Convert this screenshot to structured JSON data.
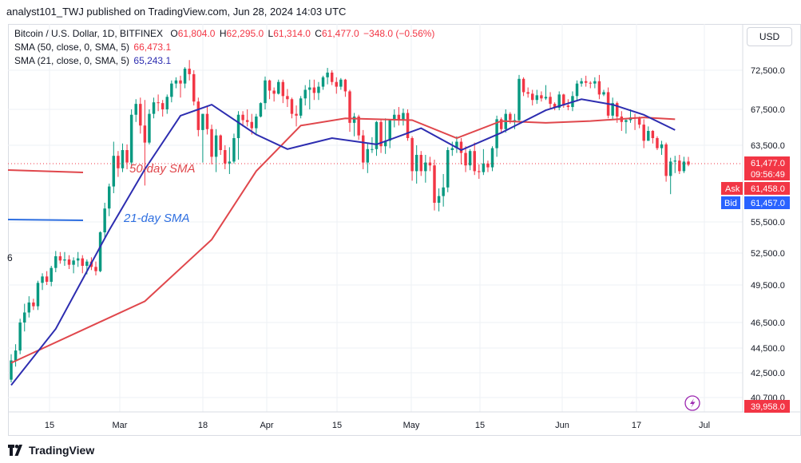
{
  "header": {
    "publisher_line": "analyst101_TWJ published on TradingView.com, Jun 28, 2024 14:03 UTC"
  },
  "legend": {
    "symbol": "Bitcoin / U.S. Dollar, 1D, BITFINEX",
    "open_label": "O",
    "open": "61,804.0",
    "high_label": "H",
    "high": "62,295.0",
    "low_label": "L",
    "low": "61,314.0",
    "close_label": "C",
    "close": "61,477.0",
    "change": "−348.0 (−0.56%)",
    "sma50_label": "SMA (50, close, 0, SMA, 5)",
    "sma50_value": "66,473.1",
    "sma21_label": "SMA (21, close, 0, SMA, 5)",
    "sma21_value": "65,243.1"
  },
  "currency_button": "USD",
  "footer": {
    "brand": "TradingView"
  },
  "colors": {
    "up": "#089981",
    "down": "#f23645",
    "sma50": "#e0474c",
    "sma21": "#2d2db0",
    "grid": "#eef0f4"
  },
  "chart_data": {
    "type": "candlestick",
    "title": "Bitcoin / U.S. Dollar, 1D, BITFINEX",
    "y_ticks": [
      "72,500.0",
      "67,500.0",
      "63,500.0",
      "55,500.0",
      "52,500.0",
      "49,500.0",
      "46,500.0",
      "44,500.0",
      "42,500.0",
      "40,700.0"
    ],
    "y_tick_values": [
      72500,
      67500,
      63500,
      55500,
      52500,
      49500,
      46500,
      44500,
      42500,
      40700
    ],
    "x_ticks": [
      "15",
      "Mar",
      "18",
      "Apr",
      "15",
      "May",
      "15",
      "Jun",
      "17",
      "Jul"
    ],
    "price_labels": {
      "last": "61,477.0",
      "countdown": "09:56:49",
      "ask_label": "Ask",
      "ask": "61,458.0",
      "bid_label": "Bid",
      "bid": "61,457.0",
      "bottom": "39,958.0"
    },
    "annotations": [
      "50-day SMA",
      "21-day SMA"
    ],
    "left_edge_char": "6",
    "candles": [
      [
        42000,
        44000,
        41800,
        43500
      ],
      [
        43500,
        44800,
        43000,
        44300
      ],
      [
        44300,
        46800,
        44000,
        46500
      ],
      [
        46500,
        48000,
        45800,
        47300
      ],
      [
        47300,
        48600,
        46900,
        48100
      ],
      [
        48100,
        48400,
        47500,
        47800
      ],
      [
        47800,
        49900,
        47500,
        49700
      ],
      [
        49700,
        50600,
        49100,
        50300
      ],
      [
        50300,
        50800,
        49500,
        49800
      ],
      [
        49800,
        51300,
        49400,
        51100
      ],
      [
        51100,
        52700,
        50700,
        52200
      ],
      [
        52200,
        52600,
        51500,
        51800
      ],
      [
        51800,
        52600,
        51300,
        51900
      ],
      [
        51900,
        52300,
        51000,
        51400
      ],
      [
        51400,
        52100,
        50600,
        51800
      ],
      [
        51800,
        52600,
        51200,
        52000
      ],
      [
        52000,
        52300,
        50600,
        51300
      ],
      [
        51300,
        51900,
        50500,
        51700
      ],
      [
        51700,
        52100,
        50900,
        51200
      ],
      [
        51200,
        51700,
        50400,
        50800
      ],
      [
        50800,
        54600,
        50700,
        54500
      ],
      [
        54500,
        57500,
        53900,
        56900
      ],
      [
        56900,
        59500,
        56100,
        59200
      ],
      [
        59200,
        63900,
        58500,
        62400
      ],
      [
        62400,
        62900,
        60200,
        61100
      ],
      [
        61100,
        63700,
        60700,
        63000
      ],
      [
        63000,
        63600,
        61000,
        61700
      ],
      [
        61700,
        67500,
        61200,
        66900
      ],
      [
        66900,
        68800,
        66100,
        68200
      ],
      [
        68200,
        69000,
        64800,
        65700
      ],
      [
        65700,
        68700,
        59300,
        63800
      ],
      [
        63800,
        67500,
        63600,
        67000
      ],
      [
        67000,
        69000,
        66500,
        68400
      ],
      [
        68400,
        69400,
        67300,
        68300
      ],
      [
        68300,
        68700,
        66700,
        67500
      ],
      [
        67500,
        69400,
        67000,
        69100
      ],
      [
        69100,
        71200,
        68400,
        70800
      ],
      [
        70800,
        71600,
        70200,
        71200
      ],
      [
        71200,
        71800,
        69000,
        70800
      ],
      [
        70800,
        72900,
        70200,
        72700
      ],
      [
        72700,
        73800,
        71200,
        72000
      ],
      [
        72000,
        72500,
        68000,
        68500
      ],
      [
        68500,
        69000,
        64500,
        65200
      ],
      [
        65200,
        67000,
        61700,
        67000
      ],
      [
        67000,
        68000,
        64700,
        65300
      ],
      [
        65300,
        65800,
        61500,
        62300
      ],
      [
        62300,
        65300,
        60700,
        64600
      ],
      [
        64600,
        64700,
        62500,
        63000
      ],
      [
        63000,
        63500,
        61000,
        61600
      ],
      [
        61600,
        63300,
        60500,
        61800
      ],
      [
        61800,
        64800,
        61600,
        64300
      ],
      [
        64300,
        67300,
        62000,
        66900
      ],
      [
        66900,
        67300,
        65600,
        66300
      ],
      [
        66300,
        67500,
        65600,
        66100
      ],
      [
        66100,
        67000,
        64700,
        65400
      ],
      [
        65400,
        67000,
        64800,
        66700
      ],
      [
        66700,
        68400,
        66600,
        68300
      ],
      [
        68300,
        71700,
        67500,
        71200
      ],
      [
        71200,
        71300,
        68800,
        69900
      ],
      [
        69900,
        70300,
        68500,
        69500
      ],
      [
        69500,
        71300,
        69400,
        71000
      ],
      [
        71000,
        71300,
        68300,
        69200
      ],
      [
        69200,
        70100,
        67800,
        68800
      ],
      [
        68800,
        69000,
        66500,
        67000
      ],
      [
        67000,
        68000,
        65600,
        66800
      ],
      [
        66800,
        69200,
        66500,
        68900
      ],
      [
        68900,
        70600,
        68000,
        70000
      ],
      [
        70000,
        71300,
        67500,
        70300
      ],
      [
        70300,
        71300,
        68700,
        69600
      ],
      [
        69600,
        71000,
        68700,
        70400
      ],
      [
        70400,
        71800,
        70000,
        71600
      ],
      [
        71600,
        72800,
        70700,
        72200
      ],
      [
        72200,
        72500,
        70600,
        71000
      ],
      [
        71000,
        71600,
        69500,
        70400
      ],
      [
        70400,
        71500,
        70000,
        71300
      ],
      [
        71300,
        71400,
        69100,
        69800
      ],
      [
        69800,
        70000,
        65000,
        66000
      ],
      [
        66000,
        67100,
        64500,
        66700
      ],
      [
        66700,
        66900,
        64100,
        64600
      ],
      [
        64600,
        65200,
        61000,
        61700
      ],
      [
        61700,
        63700,
        60600,
        63100
      ],
      [
        63100,
        64400,
        62700,
        63100
      ],
      [
        63100,
        66200,
        62400,
        66100
      ],
      [
        66100,
        66300,
        62700,
        63400
      ],
      [
        63400,
        66500,
        62600,
        64000
      ],
      [
        64000,
        66400,
        63200,
        66300
      ],
      [
        66300,
        67500,
        65500,
        66900
      ],
      [
        66900,
        67800,
        65700,
        66300
      ],
      [
        66300,
        67600,
        65700,
        67100
      ],
      [
        67100,
        67500,
        64000,
        64300
      ],
      [
        64300,
        64500,
        59800,
        60800
      ],
      [
        60800,
        63500,
        59500,
        62500
      ],
      [
        62500,
        62900,
        60300,
        60800
      ],
      [
        60800,
        62500,
        59600,
        61700
      ],
      [
        61700,
        62300,
        60800,
        61400
      ],
      [
        61400,
        62000,
        56700,
        57500
      ],
      [
        57500,
        59000,
        56600,
        58200
      ],
      [
        58200,
        60500,
        57100,
        59100
      ],
      [
        59100,
        63300,
        58600,
        63000
      ],
      [
        63000,
        63900,
        62400,
        63200
      ],
      [
        63200,
        64500,
        62700,
        63900
      ],
      [
        63900,
        64300,
        61500,
        62700
      ],
      [
        62700,
        63400,
        60700,
        61400
      ],
      [
        61400,
        63100,
        60900,
        62900
      ],
      [
        62900,
        63800,
        60400,
        60800
      ],
      [
        60800,
        61500,
        60000,
        60700
      ],
      [
        60700,
        63100,
        60400,
        61600
      ],
      [
        61600,
        61900,
        60700,
        61200
      ],
      [
        61200,
        63400,
        60800,
        63200
      ],
      [
        63200,
        66800,
        62300,
        66400
      ],
      [
        66400,
        66600,
        64900,
        65300
      ],
      [
        65300,
        67500,
        64900,
        67000
      ],
      [
        67000,
        67200,
        65900,
        66300
      ],
      [
        66300,
        67000,
        65300,
        66300
      ],
      [
        66300,
        71900,
        66100,
        71400
      ],
      [
        71400,
        71600,
        69200,
        69700
      ],
      [
        69700,
        70300,
        69000,
        69500
      ],
      [
        69500,
        70000,
        68000,
        68700
      ],
      [
        68700,
        70000,
        68200,
        69300
      ],
      [
        69300,
        69800,
        68500,
        68900
      ],
      [
        68900,
        70600,
        68700,
        69100
      ],
      [
        69100,
        69700,
        67600,
        68200
      ],
      [
        68200,
        68400,
        67400,
        67700
      ],
      [
        67700,
        69800,
        67400,
        69400
      ],
      [
        69400,
        69500,
        67700,
        68000
      ],
      [
        68000,
        68800,
        67400,
        67800
      ],
      [
        67800,
        69800,
        67300,
        69200
      ],
      [
        69200,
        71200,
        68500,
        70800
      ],
      [
        70800,
        71500,
        70400,
        71100
      ],
      [
        71100,
        71800,
        70400,
        70900
      ],
      [
        70900,
        71100,
        70200,
        70800
      ],
      [
        70800,
        71600,
        70200,
        71100
      ],
      [
        71100,
        71900,
        68800,
        69400
      ],
      [
        69400,
        70000,
        69200,
        69700
      ],
      [
        69700,
        70300,
        66500,
        66800
      ],
      [
        66800,
        69000,
        66400,
        68300
      ],
      [
        68300,
        68500,
        66000,
        66700
      ],
      [
        66700,
        67300,
        65100,
        66100
      ],
      [
        66100,
        66500,
        64800,
        66300
      ],
      [
        66300,
        67500,
        66000,
        66600
      ],
      [
        66600,
        67000,
        65200,
        66500
      ],
      [
        66500,
        66700,
        65400,
        65800
      ],
      [
        65800,
        66400,
        63200,
        64000
      ],
      [
        64000,
        65600,
        64000,
        65100
      ],
      [
        65100,
        65200,
        63700,
        64300
      ],
      [
        64300,
        64500,
        63000,
        63200
      ],
      [
        63200,
        64000,
        62500,
        63600
      ],
      [
        63600,
        63800,
        59700,
        60300
      ],
      [
        60300,
        62200,
        58400,
        61800
      ],
      [
        61800,
        62400,
        60600,
        61900
      ],
      [
        61900,
        62500,
        60500,
        60800
      ],
      [
        60800,
        62300,
        60600,
        61800
      ],
      [
        61804,
        62295,
        61314,
        61477
      ]
    ],
    "sma50": [
      [
        0,
        43300
      ],
      [
        30,
        48200
      ],
      [
        45,
        53800
      ],
      [
        55,
        60800
      ],
      [
        65,
        65700
      ],
      [
        75,
        66500
      ],
      [
        90,
        66300
      ],
      [
        100,
        64300
      ],
      [
        110,
        66200
      ],
      [
        120,
        66000
      ],
      [
        130,
        66200
      ],
      [
        142,
        66600
      ],
      [
        149,
        66400
      ]
    ],
    "sma21": [
      [
        0,
        41600
      ],
      [
        10,
        46000
      ],
      [
        22,
        54700
      ],
      [
        30,
        61000
      ],
      [
        38,
        66800
      ],
      [
        45,
        68100
      ],
      [
        55,
        64700
      ],
      [
        62,
        63100
      ],
      [
        72,
        64300
      ],
      [
        82,
        63600
      ],
      [
        92,
        65400
      ],
      [
        101,
        63000
      ],
      [
        110,
        64900
      ],
      [
        120,
        67400
      ],
      [
        128,
        68800
      ],
      [
        135,
        68100
      ],
      [
        142,
        66900
      ],
      [
        149,
        65200
      ]
    ]
  }
}
